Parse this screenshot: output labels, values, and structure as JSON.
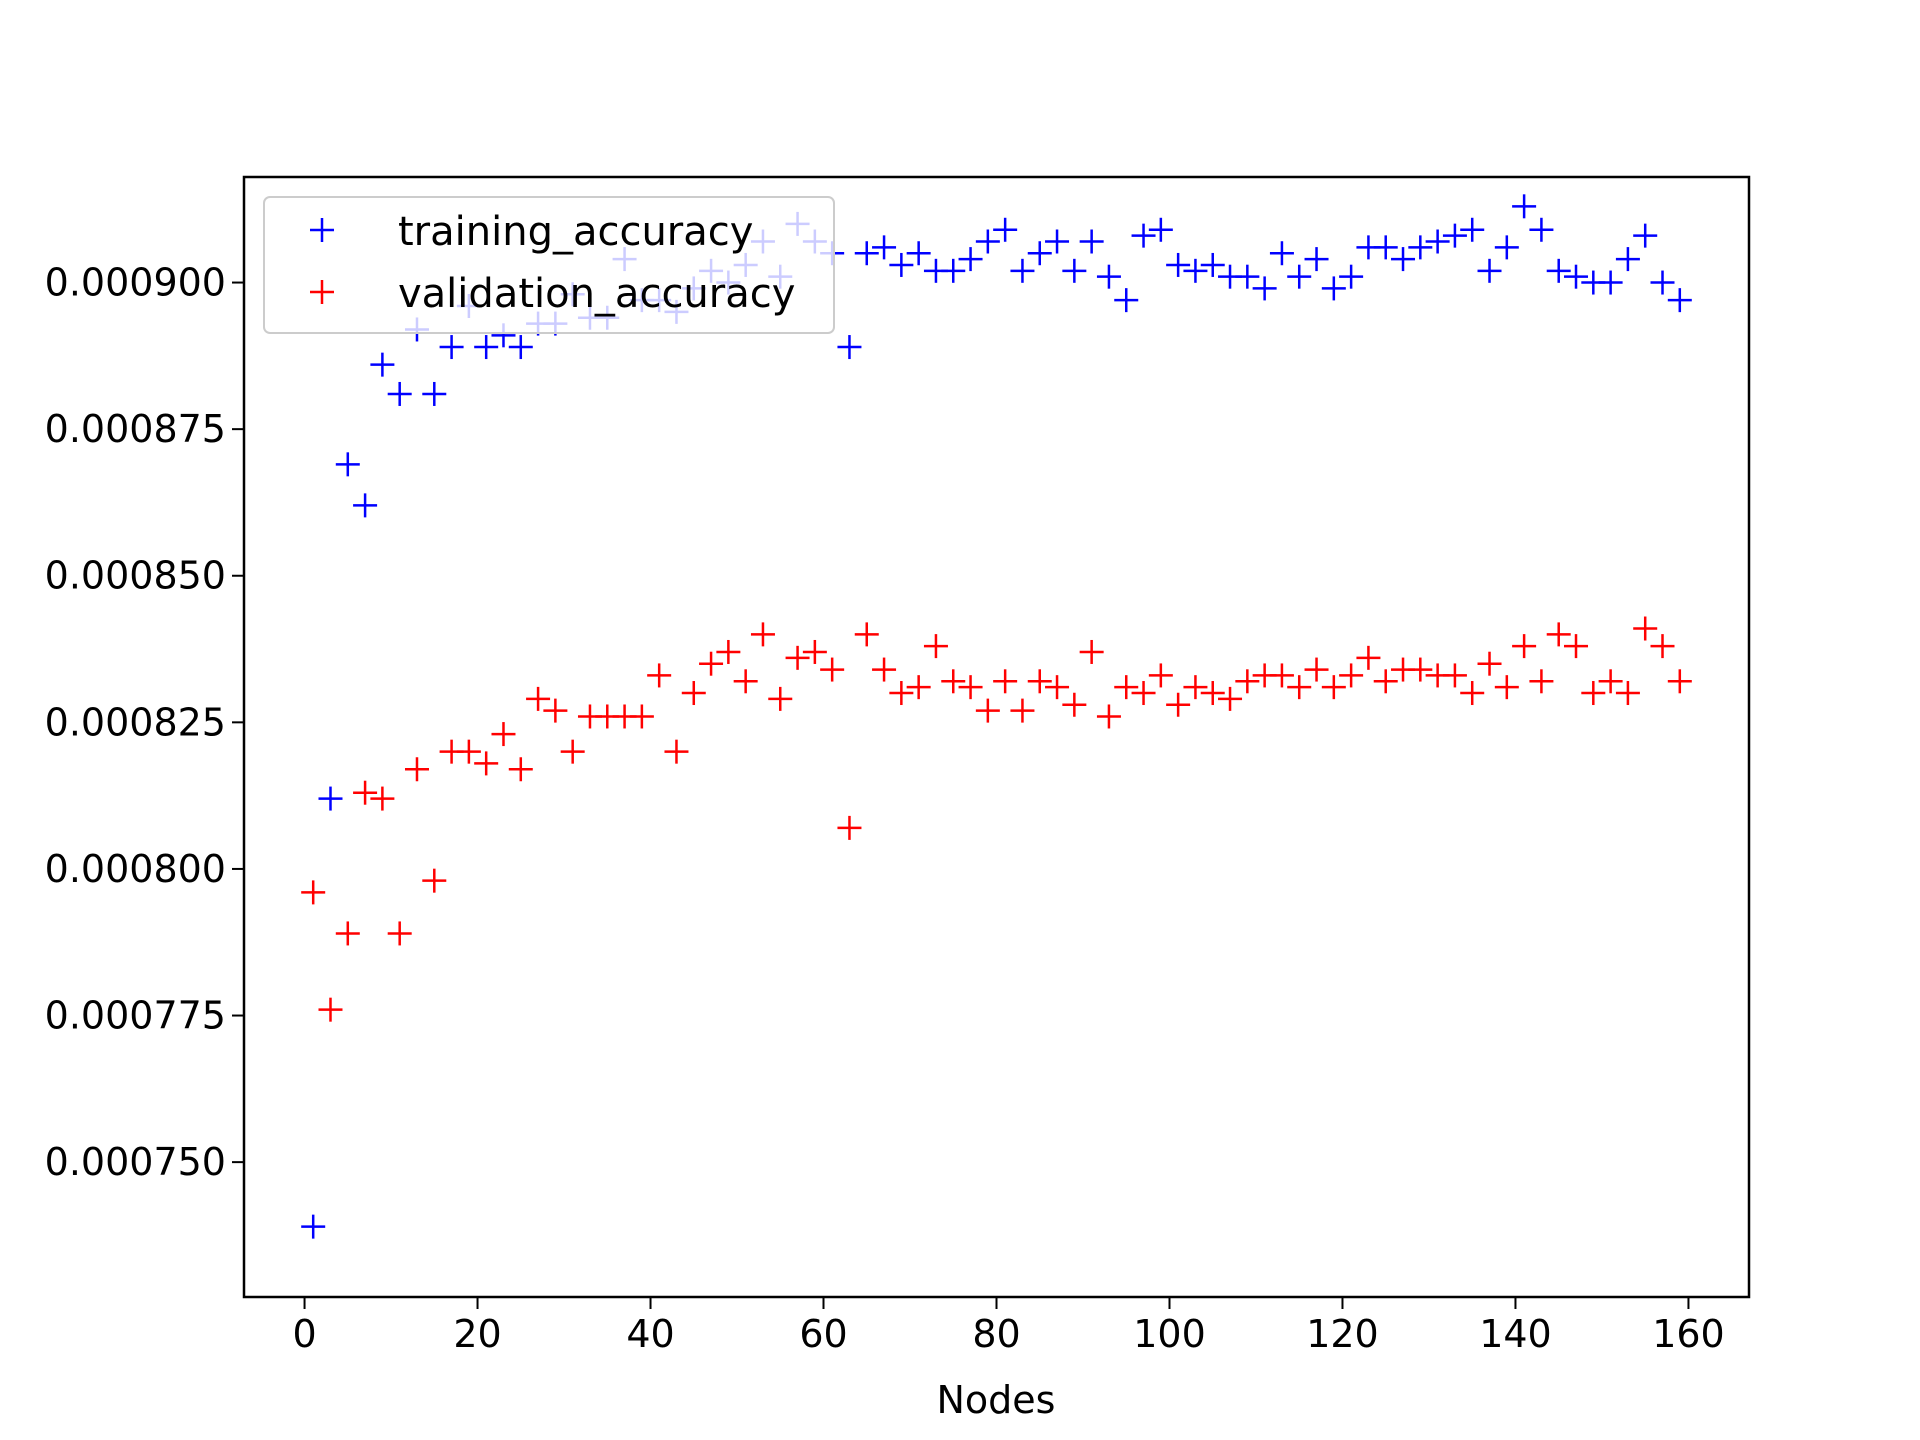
{
  "chart_data": {
    "type": "scatter",
    "title": "",
    "xlabel": "Nodes",
    "ylabel": "",
    "xlim": [
      -7,
      167
    ],
    "ylim": [
      0.000727,
      0.000918
    ],
    "xticks": [
      0,
      20,
      40,
      60,
      80,
      100,
      120,
      140,
      160
    ],
    "xtick_labels": [
      "0",
      "20",
      "40",
      "60",
      "80",
      "100",
      "120",
      "140",
      "160"
    ],
    "yticks": [
      0.00075,
      0.000775,
      0.0008,
      0.000825,
      0.00085,
      0.000875,
      0.0009
    ],
    "ytick_labels": [
      "0.000750",
      "0.000775",
      "0.000800",
      "0.000825",
      "0.000850",
      "0.000875",
      "0.000900"
    ],
    "grid": false,
    "legend_position": "upper-left",
    "marker": "+",
    "x": [
      1,
      3,
      5,
      7,
      9,
      11,
      13,
      15,
      17,
      19,
      21,
      23,
      25,
      27,
      29,
      31,
      33,
      35,
      37,
      39,
      41,
      43,
      45,
      47,
      49,
      51,
      53,
      55,
      57,
      59,
      61,
      63,
      65,
      67,
      69,
      71,
      73,
      75,
      77,
      79,
      81,
      83,
      85,
      87,
      89,
      91,
      93,
      95,
      97,
      99,
      101,
      103,
      105,
      107,
      109,
      111,
      113,
      115,
      117,
      119,
      121,
      123,
      125,
      127,
      129,
      131,
      133,
      135,
      137,
      139,
      141,
      143,
      145,
      147,
      149,
      151,
      153,
      155,
      157,
      159
    ],
    "series": [
      {
        "name": "training_accuracy",
        "color": "#0000ff",
        "values": [
          0.000739,
          0.000812,
          0.000869,
          0.000862,
          0.000886,
          0.000881,
          0.000892,
          0.000881,
          0.000889,
          0.000896,
          0.000889,
          0.000891,
          0.000889,
          0.000893,
          0.000893,
          0.000898,
          0.000894,
          0.000894,
          0.000904,
          0.000897,
          0.000897,
          0.000895,
          0.000899,
          0.000902,
          0.0009,
          0.000903,
          0.000907,
          0.000901,
          0.00091,
          0.000907,
          0.000905,
          0.000889,
          0.000905,
          0.000906,
          0.000903,
          0.000905,
          0.000902,
          0.000902,
          0.000904,
          0.000907,
          0.000909,
          0.000902,
          0.000905,
          0.000907,
          0.000902,
          0.000907,
          0.000901,
          0.000897,
          0.000908,
          0.000909,
          0.000903,
          0.000902,
          0.000903,
          0.000901,
          0.000901,
          0.000899,
          0.000905,
          0.000901,
          0.000904,
          0.000899,
          0.000901,
          0.000906,
          0.000906,
          0.000904,
          0.000906,
          0.000907,
          0.000908,
          0.000909,
          0.000902,
          0.000906,
          0.000913,
          0.000909,
          0.000902,
          0.000901,
          0.0009,
          0.0009,
          0.000904,
          0.000908,
          0.0009,
          0.000897
        ]
      },
      {
        "name": "validation_accuracy",
        "color": "#ff0000",
        "values": [
          0.000796,
          0.000776,
          0.000789,
          0.000813,
          0.000812,
          0.000789,
          0.000817,
          0.000798,
          0.00082,
          0.00082,
          0.000818,
          0.000823,
          0.000817,
          0.000829,
          0.000827,
          0.00082,
          0.000826,
          0.000826,
          0.000826,
          0.000826,
          0.000833,
          0.00082,
          0.00083,
          0.000835,
          0.000837,
          0.000832,
          0.00084,
          0.000829,
          0.000836,
          0.000837,
          0.000834,
          0.000807,
          0.00084,
          0.000834,
          0.00083,
          0.000831,
          0.000838,
          0.000832,
          0.000831,
          0.000827,
          0.000832,
          0.000827,
          0.000832,
          0.000831,
          0.000828,
          0.000837,
          0.000826,
          0.000831,
          0.00083,
          0.000833,
          0.000828,
          0.000831,
          0.00083,
          0.000829,
          0.000832,
          0.000833,
          0.000833,
          0.000831,
          0.000834,
          0.000831,
          0.000833,
          0.000836,
          0.000832,
          0.000834,
          0.000834,
          0.000833,
          0.000833,
          0.00083,
          0.000835,
          0.000831,
          0.000838,
          0.000832,
          0.00084,
          0.000838,
          0.00083,
          0.000832,
          0.00083,
          0.000841,
          0.000838,
          0.000832
        ]
      }
    ]
  }
}
